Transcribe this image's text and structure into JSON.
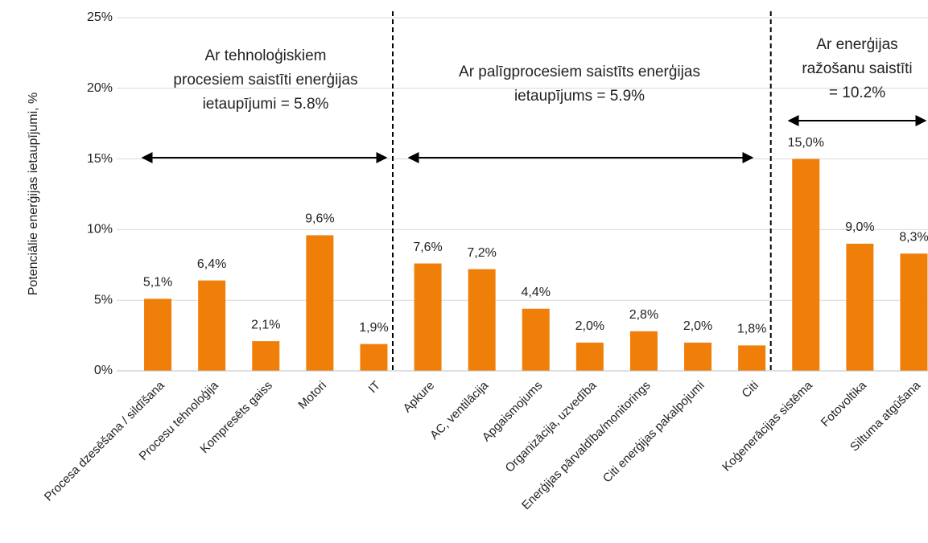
{
  "chart_data": {
    "type": "bar",
    "y_axis_label": "Potenciālie enerģijas ietaupījumi, %",
    "categories": [
      "Procesa dzesēšana / sildīšana",
      "Procesu tehnoloģija",
      "Kompresēts gaiss",
      "Motori",
      "IT",
      "Apkure",
      "AC, ventilācija",
      "Apgaismojums",
      "Organizācija, uzvedība",
      "Enerģijas pārvaldība/monitorings",
      "Citi enerģijas pakalpojumi",
      "Citi",
      "Koģenerācijas sistēma",
      "Fotovoltika",
      "Siltuma atgūšana"
    ],
    "values": [
      5.1,
      6.4,
      2.1,
      9.6,
      1.9,
      7.6,
      7.2,
      4.4,
      2.0,
      2.8,
      2.0,
      1.8,
      15.0,
      9.0,
      8.3
    ],
    "value_labels": [
      "5,1%",
      "6,4%",
      "2,1%",
      "9,6%",
      "1,9%",
      "7,6%",
      "7,2%",
      "4,4%",
      "2,0%",
      "2,8%",
      "2,0%",
      "1,8%",
      "15,0%",
      "9,0%",
      "8,3%"
    ],
    "color": "#f07f09",
    "ylim": [
      0,
      25
    ],
    "yticks": [
      {
        "value": 0,
        "label": "0%"
      },
      {
        "value": 5,
        "label": "5%"
      },
      {
        "value": 10,
        "label": "10%"
      },
      {
        "value": 15,
        "label": "15%"
      },
      {
        "value": 20,
        "label": "20%"
      },
      {
        "value": 25,
        "label": "25%"
      }
    ],
    "grid": true,
    "annotations": [
      {
        "lines": [
          "Ar tehnoloģiskiem",
          "procesiem saistīti enerģijas",
          "ietaupījumi = 5.8%"
        ]
      },
      {
        "lines": [
          "Ar palīgprocesiem saistīts enerģijas",
          "ietaupījums = 5.9%"
        ]
      },
      {
        "lines": [
          "Ar enerģijas",
          "ražošanu saistīti",
          "= 10.2%"
        ]
      }
    ]
  }
}
